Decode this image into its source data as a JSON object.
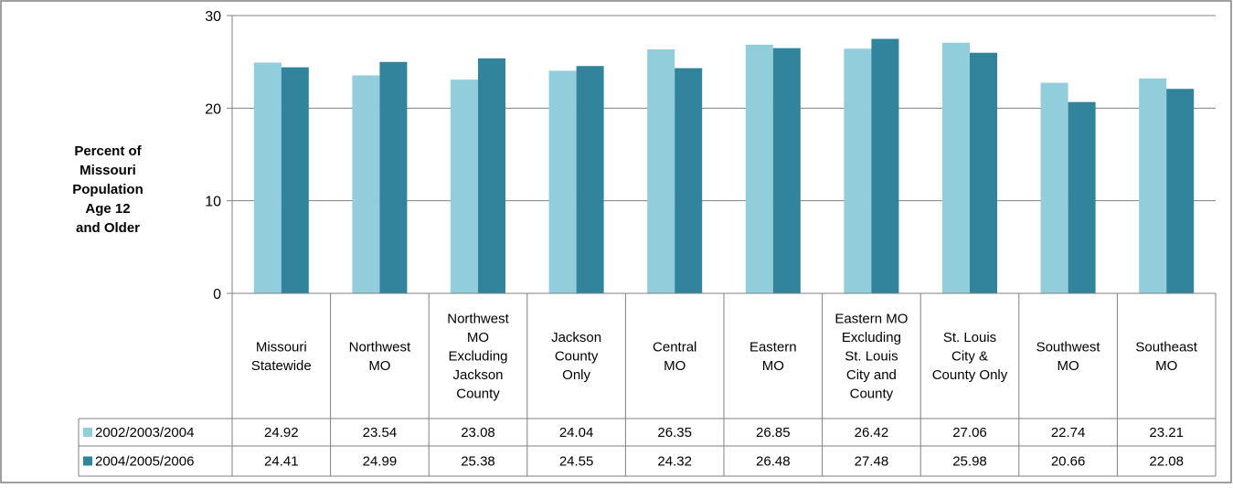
{
  "chart_data": {
    "type": "bar",
    "title": "",
    "xlabel": "",
    "ylabel_lines": [
      "Percent of",
      "Missouri",
      "Population",
      "Age 12",
      "and Older"
    ],
    "ylim": [
      0,
      30
    ],
    "yticks": [
      "0",
      "10",
      "20",
      "30"
    ],
    "grid": true,
    "legend": "data-table",
    "categories": [
      [
        "Missouri",
        "Statewide"
      ],
      [
        "Northwest",
        "MO"
      ],
      [
        "Northwest",
        "MO",
        "Excluding",
        "Jackson",
        "County"
      ],
      [
        "Jackson",
        "County",
        "Only"
      ],
      [
        "Central",
        "MO"
      ],
      [
        "Eastern",
        "MO"
      ],
      [
        "Eastern MO",
        "Excluding",
        "St. Louis",
        "City and",
        "County"
      ],
      [
        "St. Louis",
        "City &",
        "County Only"
      ],
      [
        "Southwest",
        "MO"
      ],
      [
        "Southeast",
        "MO"
      ]
    ],
    "series": [
      {
        "name": "2002/2003/2004",
        "color": "#92CDDC",
        "values": [
          24.92,
          23.54,
          23.08,
          24.04,
          26.35,
          26.85,
          26.42,
          27.06,
          22.74,
          23.21
        ],
        "labels": [
          "24.92",
          "23.54",
          "23.08",
          "24.04",
          "26.35",
          "26.85",
          "26.42",
          "27.06",
          "22.74",
          "23.21"
        ]
      },
      {
        "name": "2004/2005/2006",
        "color": "#31849B",
        "values": [
          24.41,
          24.99,
          25.38,
          24.55,
          24.32,
          26.48,
          27.48,
          25.98,
          20.66,
          22.08
        ],
        "labels": [
          "24.41",
          "24.99",
          "25.38",
          "24.55",
          "24.32",
          "26.48",
          "27.48",
          "25.98",
          "20.66",
          "22.08"
        ]
      }
    ]
  }
}
